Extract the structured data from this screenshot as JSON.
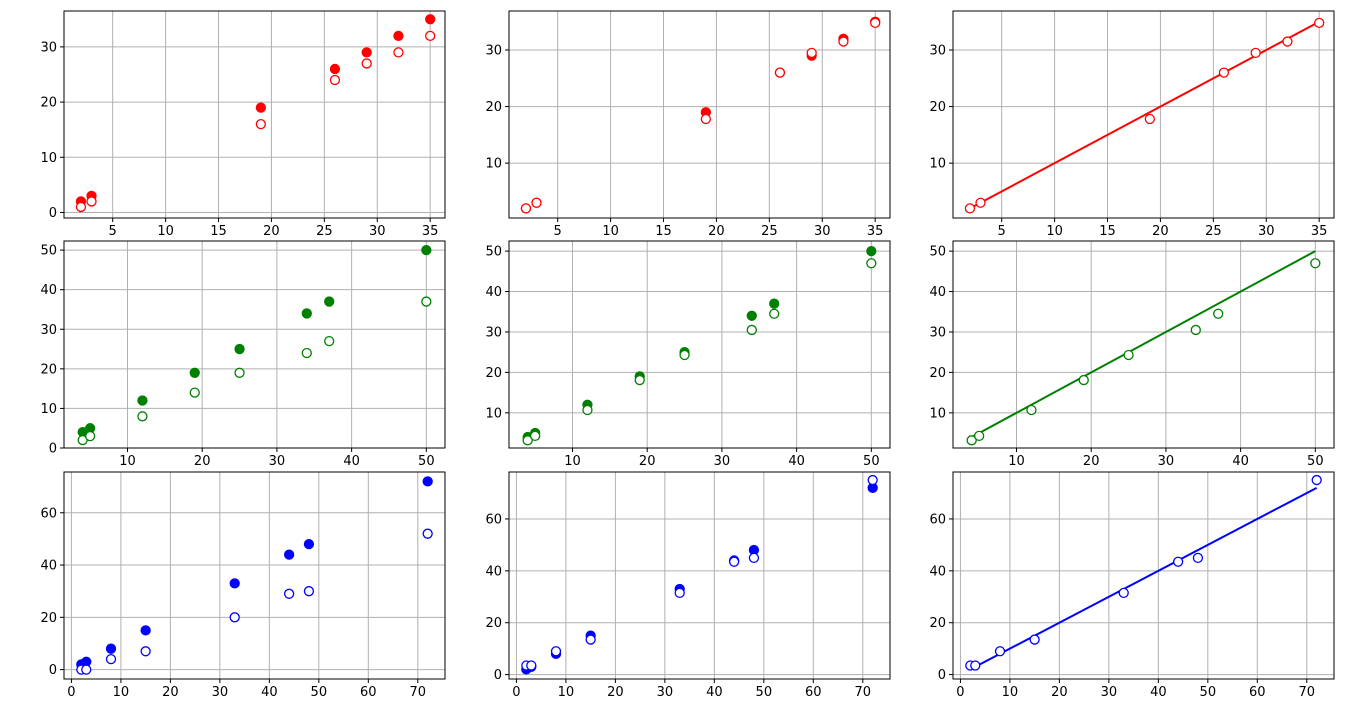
{
  "chart_data": [
    {
      "type": "scatter",
      "row": 0,
      "col": 0,
      "color": "#ff0000",
      "xlim": [
        0.4,
        36.4
      ],
      "ylim": [
        -1,
        36.5
      ],
      "xticks": [
        5,
        10,
        15,
        20,
        25,
        30,
        35
      ],
      "yticks": [
        0,
        10,
        20,
        30
      ],
      "grid": true,
      "series": [
        {
          "marker": "filled",
          "x": [
            2,
            3,
            19,
            26,
            29,
            32,
            35
          ],
          "y": [
            2,
            3,
            19,
            26,
            29,
            32,
            35
          ]
        },
        {
          "marker": "hollow",
          "x": [
            2,
            3,
            19,
            26,
            29,
            32,
            35
          ],
          "y": [
            1,
            2,
            16,
            24,
            27,
            29,
            32
          ]
        }
      ]
    },
    {
      "type": "scatter",
      "row": 0,
      "col": 1,
      "color": "#ff0000",
      "xlim": [
        0.4,
        36.4
      ],
      "ylim": [
        0.3,
        36.9
      ],
      "xticks": [
        5,
        10,
        15,
        20,
        25,
        30,
        35
      ],
      "yticks": [
        10,
        20,
        30
      ],
      "grid": true,
      "series": [
        {
          "marker": "filled",
          "x": [
            2,
            3,
            19,
            26,
            29,
            32,
            35
          ],
          "y": [
            2,
            3,
            19,
            26,
            29,
            32,
            35
          ]
        },
        {
          "marker": "hollow",
          "x": [
            2,
            3,
            19,
            26,
            29,
            32,
            35
          ],
          "y": [
            2,
            3,
            17.8,
            26,
            29.5,
            31.5,
            34.8
          ]
        }
      ]
    },
    {
      "type": "scatter",
      "row": 0,
      "col": 2,
      "color": "#ff0000",
      "xlim": [
        0.4,
        36.4
      ],
      "ylim": [
        0.3,
        36.9
      ],
      "xticks": [
        5,
        10,
        15,
        20,
        25,
        30,
        35
      ],
      "yticks": [
        10,
        20,
        30
      ],
      "grid": true,
      "series": [
        {
          "marker": "line",
          "x": [
            2,
            35
          ],
          "y": [
            2,
            35
          ]
        },
        {
          "marker": "hollow",
          "x": [
            2,
            3,
            19,
            26,
            29,
            32,
            35
          ],
          "y": [
            2,
            3,
            17.8,
            26,
            29.5,
            31.5,
            34.8
          ]
        }
      ]
    },
    {
      "type": "scatter",
      "row": 1,
      "col": 0,
      "color": "#008000",
      "xlim": [
        1.5,
        52.5
      ],
      "ylim": [
        0,
        52.3
      ],
      "xticks": [
        10,
        20,
        30,
        40,
        50
      ],
      "yticks": [
        0,
        10,
        20,
        30,
        40,
        50
      ],
      "grid": true,
      "series": [
        {
          "marker": "filled",
          "x": [
            4,
            5,
            12,
            19,
            25,
            34,
            37,
            50
          ],
          "y": [
            4,
            5,
            12,
            19,
            25,
            34,
            37,
            50
          ]
        },
        {
          "marker": "hollow",
          "x": [
            4,
            5,
            12,
            19,
            25,
            34,
            37,
            50
          ],
          "y": [
            2,
            3,
            8,
            14,
            19,
            24,
            27,
            37
          ]
        }
      ]
    },
    {
      "type": "scatter",
      "row": 1,
      "col": 1,
      "color": "#008000",
      "xlim": [
        1.5,
        52.5
      ],
      "ylim": [
        1.3,
        52.5
      ],
      "xticks": [
        10,
        20,
        30,
        40,
        50
      ],
      "yticks": [
        10,
        20,
        30,
        40,
        50
      ],
      "grid": true,
      "series": [
        {
          "marker": "filled",
          "x": [
            4,
            5,
            12,
            19,
            25,
            34,
            37,
            50
          ],
          "y": [
            4,
            5,
            12,
            19,
            25,
            34,
            37,
            50
          ]
        },
        {
          "marker": "hollow",
          "x": [
            4,
            5,
            12,
            19,
            25,
            34,
            37,
            50
          ],
          "y": [
            3.2,
            4.3,
            10.7,
            18.1,
            24.3,
            30.5,
            34.5,
            47
          ]
        }
      ]
    },
    {
      "type": "scatter",
      "row": 1,
      "col": 2,
      "color": "#008000",
      "xlim": [
        1.5,
        52.5
      ],
      "ylim": [
        1.3,
        52.5
      ],
      "xticks": [
        10,
        20,
        30,
        40,
        50
      ],
      "yticks": [
        10,
        20,
        30,
        40,
        50
      ],
      "grid": true,
      "series": [
        {
          "marker": "line",
          "x": [
            4,
            50
          ],
          "y": [
            4,
            50
          ]
        },
        {
          "marker": "hollow",
          "x": [
            4,
            5,
            12,
            19,
            25,
            34,
            37,
            50
          ],
          "y": [
            3.2,
            4.3,
            10.7,
            18.1,
            24.3,
            30.5,
            34.5,
            47
          ]
        }
      ]
    },
    {
      "type": "scatter",
      "row": 2,
      "col": 0,
      "color": "#0000ff",
      "xlim": [
        -1.5,
        75.5
      ],
      "ylim": [
        -3.6,
        75.6
      ],
      "xticks": [
        0,
        10,
        20,
        30,
        40,
        50,
        60,
        70
      ],
      "yticks": [
        0,
        20,
        40,
        60
      ],
      "grid": true,
      "series": [
        {
          "marker": "filled",
          "x": [
            2,
            3,
            8,
            15,
            33,
            44,
            48,
            72
          ],
          "y": [
            2,
            3,
            8,
            15,
            33,
            44,
            48,
            72
          ]
        },
        {
          "marker": "hollow",
          "x": [
            2,
            3,
            8,
            15,
            33,
            44,
            48,
            72
          ],
          "y": [
            0,
            0,
            4,
            7,
            20,
            29,
            30,
            52
          ]
        }
      ]
    },
    {
      "type": "scatter",
      "row": 2,
      "col": 1,
      "color": "#0000ff",
      "xlim": [
        -1.5,
        75.5
      ],
      "ylim": [
        -1.7,
        78.1
      ],
      "xticks": [
        0,
        10,
        20,
        30,
        40,
        50,
        60,
        70
      ],
      "yticks": [
        0,
        20,
        40,
        60
      ],
      "grid": true,
      "series": [
        {
          "marker": "filled",
          "x": [
            2,
            3,
            8,
            15,
            33,
            44,
            48,
            72
          ],
          "y": [
            2,
            3,
            8,
            15,
            33,
            44,
            48,
            72
          ]
        },
        {
          "marker": "hollow",
          "x": [
            2,
            3,
            8,
            15,
            33,
            44,
            48,
            72
          ],
          "y": [
            3.5,
            3.5,
            9,
            13.5,
            31.5,
            43.5,
            45,
            75
          ]
        }
      ]
    },
    {
      "type": "scatter",
      "row": 2,
      "col": 2,
      "color": "#0000ff",
      "xlim": [
        -1.5,
        75.5
      ],
      "ylim": [
        -1.7,
        78.1
      ],
      "xticks": [
        0,
        10,
        20,
        30,
        40,
        50,
        60,
        70
      ],
      "yticks": [
        0,
        20,
        40,
        60
      ],
      "grid": true,
      "series": [
        {
          "marker": "line",
          "x": [
            2,
            72
          ],
          "y": [
            2,
            72
          ]
        },
        {
          "marker": "hollow",
          "x": [
            2,
            3,
            8,
            15,
            33,
            44,
            48,
            72
          ],
          "y": [
            3.5,
            3.5,
            9,
            13.5,
            31.5,
            43.5,
            45,
            75
          ]
        }
      ]
    }
  ]
}
